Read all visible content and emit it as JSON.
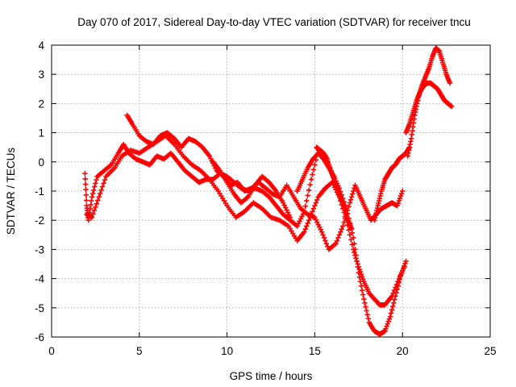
{
  "chart_data": {
    "type": "scatter",
    "title": "Day 070 of 2017, Sidereal Day-to-day VTEC variation (SDTVAR) for receiver tncu",
    "xlabel": "GPS time / hours",
    "ylabel": "SDTVAR / TECUs",
    "xlim": [
      0,
      25
    ],
    "ylim": [
      -6,
      4
    ],
    "xticks": [
      "0",
      "5",
      "10",
      "15",
      "20",
      "25"
    ],
    "yticks": [
      "-6",
      "-5",
      "-4",
      "-3",
      "-2",
      "-1",
      "0",
      "1",
      "2",
      "3",
      "4"
    ],
    "grid": true,
    "marker": "+",
    "color": "#ff0000",
    "series": [
      {
        "x": [
          1.9,
          2.0,
          2.1,
          2.3,
          2.6,
          3.0,
          3.4,
          3.8,
          4.1,
          4.4,
          4.8,
          5.2,
          5.6,
          6.0,
          6.4,
          6.8,
          7.2,
          7.6,
          8.0,
          8.4,
          8.8,
          9.2,
          9.6,
          10.0,
          10.4,
          10.8,
          11.2,
          11.6,
          12.0,
          12.4,
          12.8,
          13.2,
          13.6,
          14.0,
          14.4,
          14.8,
          15.2,
          15.6,
          16.0,
          16.4,
          16.8,
          17.2,
          17.5,
          17.8,
          18.1,
          18.4,
          18.7,
          19.0,
          19.3,
          19.6,
          19.9,
          20.2
        ],
        "y": [
          -0.4,
          -1.5,
          -2.0,
          -1.2,
          -0.5,
          -0.3,
          -0.1,
          0.3,
          0.6,
          0.3,
          0.1,
          0.0,
          -0.1,
          0.2,
          0.1,
          0.3,
          0.0,
          -0.3,
          -0.5,
          -0.7,
          -0.6,
          -0.6,
          -0.4,
          -0.5,
          -0.7,
          -0.9,
          -1.0,
          -0.9,
          -1.0,
          -1.2,
          -1.5,
          -1.8,
          -2.0,
          -2.2,
          -1.7,
          -0.6,
          0.4,
          0.2,
          -0.4,
          -0.9,
          -1.6,
          -2.6,
          -3.8,
          -4.7,
          -5.5,
          -5.8,
          -5.9,
          -5.8,
          -5.3,
          -4.6,
          -3.9,
          -3.4
        ]
      },
      {
        "x": [
          2.0,
          2.3,
          2.7,
          3.1,
          3.6,
          4.0,
          4.5,
          5.0,
          5.5,
          6.0,
          6.5,
          7.0,
          7.5,
          8.0,
          8.5,
          9.0,
          9.5,
          10.0,
          10.5,
          11.0,
          11.5,
          12.0,
          12.5,
          13.0,
          13.5,
          14.0,
          14.4,
          14.8,
          15.2,
          15.6,
          16.0,
          16.4,
          16.8,
          17.2,
          17.5,
          17.8,
          18.1,
          18.4,
          18.7,
          19.0,
          19.4,
          19.8,
          20.1
        ],
        "y": [
          -1.8,
          -1.9,
          -1.2,
          -0.5,
          -0.2,
          0.2,
          0.4,
          0.3,
          0.5,
          0.7,
          0.9,
          0.6,
          0.2,
          -0.1,
          -0.3,
          -0.6,
          -1.0,
          -1.5,
          -1.9,
          -1.7,
          -1.4,
          -1.6,
          -1.9,
          -2.0,
          -2.2,
          -2.7,
          -2.4,
          -1.8,
          -1.2,
          -0.9,
          -0.7,
          -1.2,
          -2.0,
          -3.0,
          -3.6,
          -4.1,
          -4.5,
          -4.7,
          -4.9,
          -4.9,
          -4.6,
          -4.0,
          -3.6
        ]
      },
      {
        "x": [
          4.3,
          4.6,
          5.0,
          5.4,
          5.8,
          6.2,
          6.6,
          7.0,
          7.4,
          7.8,
          8.2,
          8.6,
          9.0,
          9.4,
          9.8,
          10.2,
          10.6,
          11.0,
          11.4,
          11.8,
          12.2,
          12.6,
          13.0,
          13.4,
          13.8,
          14.2,
          14.6,
          15.0,
          15.4,
          15.8,
          16.2,
          16.6,
          17.0,
          17.3,
          17.6,
          17.9,
          18.2,
          18.5,
          18.8,
          19.1,
          19.4,
          19.7,
          20.0
        ],
        "y": [
          1.6,
          1.3,
          0.9,
          0.7,
          0.6,
          0.9,
          1.0,
          0.8,
          0.5,
          0.8,
          0.7,
          0.5,
          0.2,
          -0.3,
          -0.5,
          -0.8,
          -0.7,
          -1.0,
          -0.9,
          -0.7,
          -0.9,
          -1.1,
          -1.2,
          -0.8,
          -1.2,
          -1.6,
          -1.8,
          -1.9,
          -2.4,
          -3.0,
          -2.8,
          -2.2,
          -1.4,
          -0.8,
          -1.2,
          -1.6,
          -2.0,
          -1.8,
          -1.6,
          -1.5,
          -1.4,
          -1.5,
          -1.0
        ]
      },
      {
        "x": [
          15.1,
          15.3,
          15.5,
          15.7,
          15.9,
          16.1,
          16.3,
          16.5,
          16.7,
          16.9,
          17.1
        ],
        "y": [
          0.5,
          0.4,
          0.3,
          0.1,
          -0.3,
          -0.6,
          -1.0,
          -1.3,
          -1.6,
          -2.0,
          -2.3
        ]
      },
      {
        "x": [
          18.4,
          18.6,
          18.8,
          19.0,
          19.2,
          19.4,
          19.6,
          19.8,
          20.0,
          20.2,
          20.4
        ],
        "y": [
          -2.0,
          -1.5,
          -1.0,
          -0.6,
          -0.4,
          -0.2,
          -0.1,
          0.1,
          0.2,
          0.3,
          0.5
        ]
      },
      {
        "x": [
          20.3,
          20.5,
          20.7,
          20.9,
          21.1,
          21.3,
          21.5,
          21.7,
          21.9,
          22.1,
          22.3,
          22.5,
          22.7
        ],
        "y": [
          0.2,
          0.8,
          1.6,
          2.2,
          2.6,
          2.9,
          3.2,
          3.6,
          3.9,
          3.8,
          3.4,
          3.0,
          2.7
        ]
      },
      {
        "x": [
          20.2,
          20.4,
          20.6,
          20.8,
          21.0,
          21.2,
          21.4,
          21.6,
          21.8,
          22.0,
          22.2,
          22.4,
          22.6,
          22.8
        ],
        "y": [
          1.0,
          1.3,
          1.7,
          2.1,
          2.4,
          2.6,
          2.7,
          2.7,
          2.6,
          2.5,
          2.3,
          2.1,
          2.0,
          1.9
        ]
      },
      {
        "x": [
          9.2,
          9.6,
          10.0,
          10.4,
          10.8,
          11.2,
          11.6,
          12.0,
          12.4,
          12.8,
          13.2,
          13.6
        ],
        "y": [
          0.0,
          -0.3,
          -0.7,
          -1.1,
          -1.4,
          -1.2,
          -0.8,
          -0.5,
          -0.7,
          -1.0,
          -1.4,
          -1.9
        ]
      },
      {
        "x": [
          14.0,
          14.3,
          14.6,
          14.9,
          15.2,
          15.5,
          15.8,
          16.1
        ],
        "y": [
          -1.0,
          -0.6,
          -0.2,
          0.1,
          0.3,
          0.1,
          -0.2,
          -0.5
        ]
      }
    ]
  }
}
